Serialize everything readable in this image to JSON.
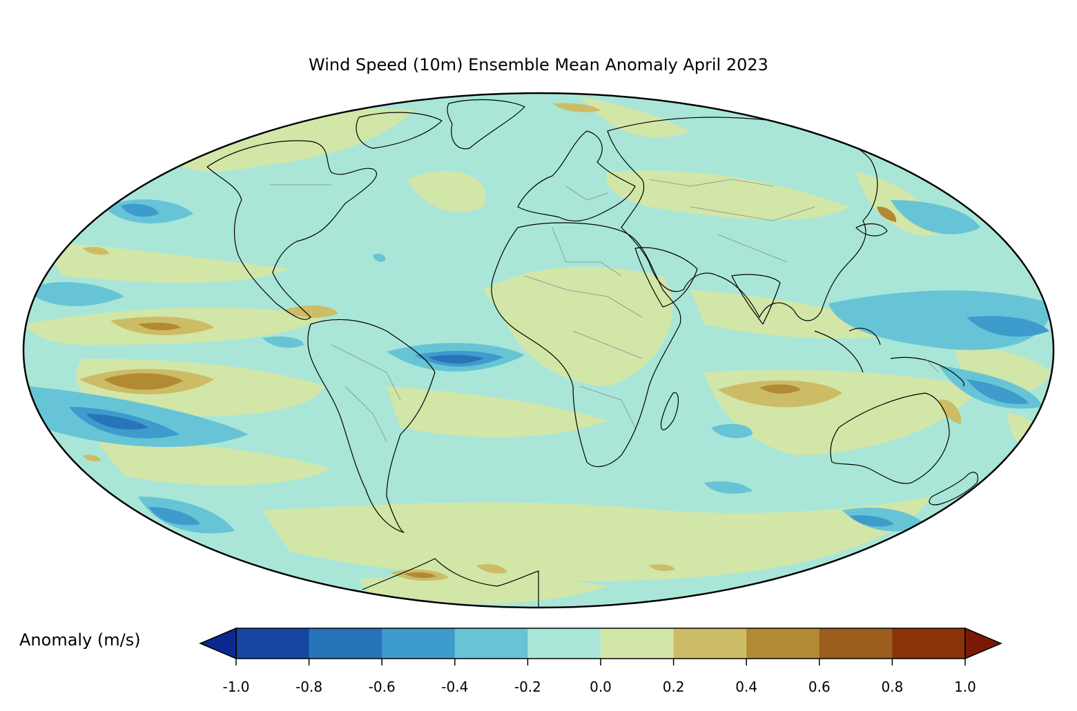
{
  "title": "Wind Speed (10m) Ensemble Mean Anomaly April 2023",
  "colorbar": {
    "label": "Anomaly (m/s)",
    "ticks": [
      "-1.0",
      "-0.8",
      "-0.6",
      "-0.4",
      "-0.2",
      "0.0",
      "0.2",
      "0.4",
      "0.6",
      "0.8",
      "1.0"
    ],
    "colors": [
      "#1546a3",
      "#2874b8",
      "#3d9ccc",
      "#66c4d6",
      "#a9e6d8",
      "#d2e6a8",
      "#cdbc66",
      "#b38a34",
      "#9b5c1c",
      "#8a3208"
    ],
    "under_color": "#0a2a8f",
    "over_color": "#7a1a04",
    "extend": "both"
  },
  "map": {
    "projection": "Mollweide",
    "background_color": "#a9e6d8"
  }
}
